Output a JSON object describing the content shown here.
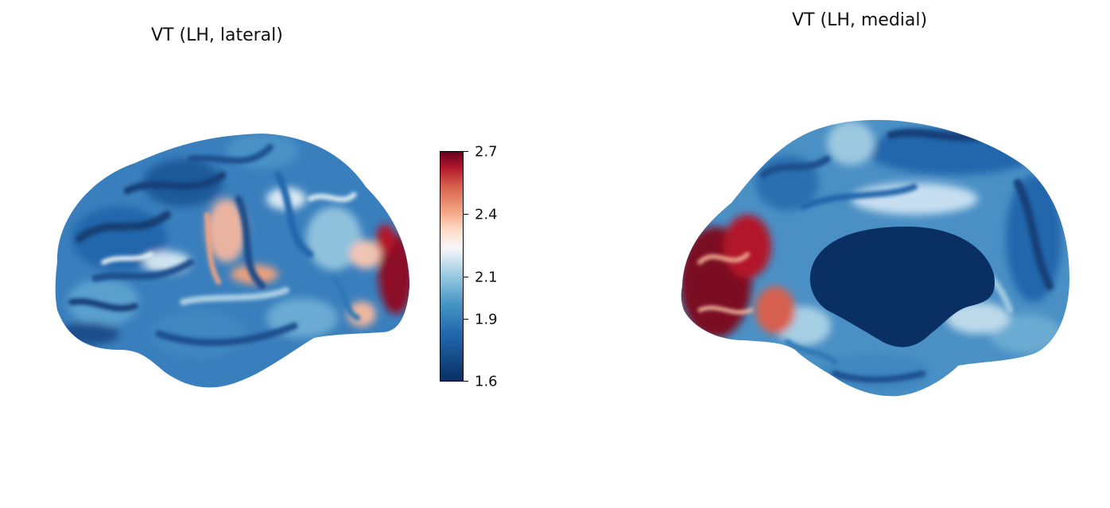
{
  "panels": {
    "left_title": "VT (LH, lateral)",
    "right_title": "VT (LH, medial)"
  },
  "colorbar": {
    "colormap": "RdBu_r",
    "min": 1.6,
    "max": 2.7,
    "tick_labels": [
      "2.7",
      "2.4",
      "2.1",
      "1.9",
      "1.6"
    ],
    "tick_values": [
      2.7,
      2.4,
      2.1,
      1.9,
      1.6
    ]
  },
  "colors": {
    "dark_blue": "#0a2f63",
    "blue": "#2166ac",
    "light_blue": "#92c5de",
    "white": "#f7f7f7",
    "light_red": "#f4a582",
    "dark_red": "#67001f"
  }
}
